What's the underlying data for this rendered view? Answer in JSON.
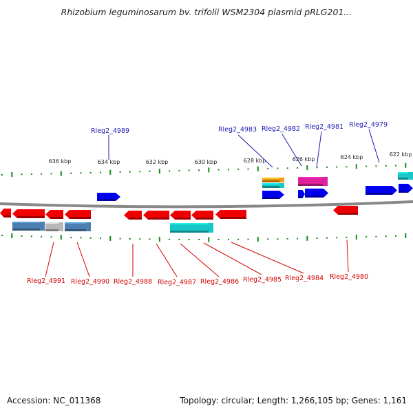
{
  "title": "Rhizobium leguminosarum bv. trifolii WSM2304 plasmid pRLG201...",
  "footer": {
    "accession": "Accession: NC_011368",
    "summary": "Topology: circular; Length: 1,266,105 bp; Genes: 1,161"
  },
  "colors": {
    "red": "#ee0000",
    "blue": "#0000ee",
    "steel": "#4a7fb0",
    "gray": "#b8b8b8",
    "cyan": "#18c8c8",
    "orange": "#f39a10",
    "magenta": "#e0209a",
    "tick": "#118811",
    "backbone": "#888888",
    "label_blue": "#1a1ab4",
    "label_red": "#d40000"
  },
  "scale_labels": [
    "636 kbp",
    "634 kbp",
    "632 kbp",
    "630 kbp",
    "628 kbp",
    "626 kbp",
    "624 kbp",
    "622 kbp"
  ],
  "labels_top": [
    "Rleg2_4989",
    "Rleg2_4983",
    "Rleg2_4982",
    "Rleg2_4981",
    "Rleg2_4979"
  ],
  "labels_bottom": [
    "Rleg2_4991",
    "Rleg2_4990",
    "Rleg2_4988",
    "Rleg2_4987",
    "Rleg2_4986",
    "Rleg2_4985",
    "Rleg2_4984",
    "Rleg2_4980"
  ]
}
